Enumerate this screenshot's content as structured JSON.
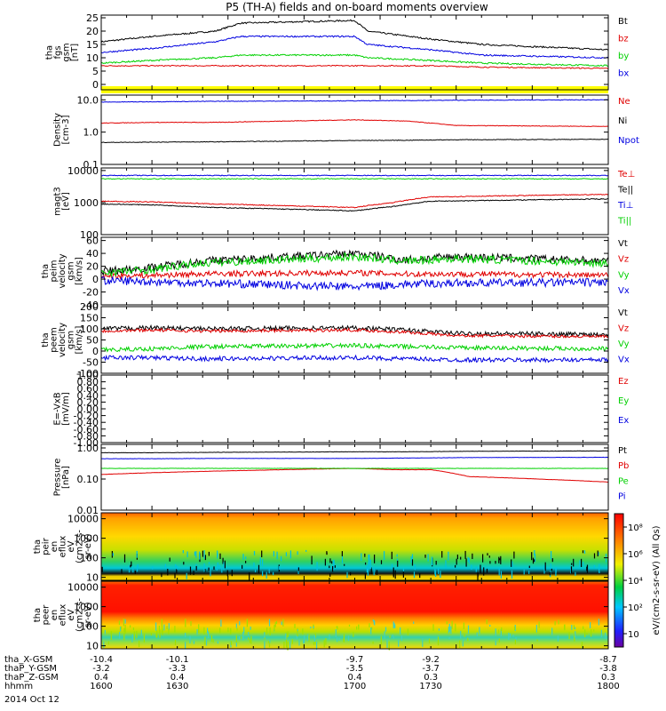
{
  "title": "P5 (TH-A) fields and on-board moments overview",
  "date_label": "2014 Oct 12",
  "ephemeris": {
    "rows": [
      {
        "label": "tha_X-GSM",
        "values": [
          "-10.4",
          "-10.1",
          "-9.7",
          "-9.2",
          "-8.7"
        ]
      },
      {
        "label": "thaP_Y-GSM",
        "values": [
          "-3.2",
          "-3.3",
          "-3.5",
          "-3.7",
          "-3.8"
        ]
      },
      {
        "label": "thaP_Z-GSM",
        "values": [
          "0.4",
          "0.4",
          "0.4",
          "0.3",
          "0.3"
        ]
      },
      {
        "label": "hhmm",
        "values": [
          "1600",
          "1630",
          "1700",
          "1730",
          "1800"
        ]
      }
    ]
  },
  "colorbar_label": "eV/(cm2-s-sr-eV) (All Qs)",
  "colorbar_ticks": [
    "10",
    "10²",
    "10⁴",
    "10⁶",
    "10⁸"
  ],
  "colors": {
    "black": "#000000",
    "red": "#e00000",
    "green": "#00d000",
    "blue": "#0000e0",
    "yellow": "#ffff00"
  },
  "chart_data": [
    {
      "type": "line",
      "ylabel": [
        "tha",
        "fgs",
        "gsm",
        "[nT]"
      ],
      "ylim": [
        -2,
        26
      ],
      "yticks": [
        0,
        5,
        10,
        15,
        20,
        25
      ],
      "ytick_labels": [
        "0",
        "5",
        "10",
        "15",
        "20",
        "25"
      ],
      "log": false,
      "x": [
        1600,
        1620,
        1645,
        1655,
        1700,
        1705,
        1730,
        1750,
        1800
      ],
      "series": [
        {
          "name": "Bt",
          "color": "black",
          "values": [
            16,
            18,
            20,
            23,
            24,
            20,
            17,
            15,
            13
          ]
        },
        {
          "name": "bz",
          "color": "red",
          "values": [
            7,
            7,
            7,
            7,
            7,
            7,
            7,
            6.5,
            6
          ]
        },
        {
          "name": "by",
          "color": "green",
          "values": [
            8,
            9,
            10,
            11,
            11,
            10,
            9,
            8,
            7
          ]
        },
        {
          "name": "bx",
          "color": "blue",
          "values": [
            12,
            13.5,
            16,
            18,
            18,
            15,
            13,
            11,
            10
          ]
        }
      ]
    },
    {
      "type": "line",
      "ylabel": [
        "Density",
        "[cm-3]"
      ],
      "ylim": [
        0.1,
        14
      ],
      "yticks": [
        0.1,
        1,
        10
      ],
      "ytick_labels": [
        "0.1",
        "1.0",
        "10.0"
      ],
      "log": true,
      "x": [
        1600,
        1620,
        1645,
        1700,
        1720,
        1740,
        1800
      ],
      "series": [
        {
          "name": "Ne",
          "color": "red",
          "values": [
            1.9,
            2.0,
            2.0,
            2.4,
            2.2,
            1.6,
            1.5
          ]
        },
        {
          "name": "Ni",
          "color": "black",
          "values": [
            0.48,
            0.49,
            0.5,
            0.55,
            0.56,
            0.58,
            0.6
          ]
        },
        {
          "name": "Npot",
          "color": "blue",
          "values": [
            8.5,
            8.7,
            9,
            9.3,
            9.5,
            9.7,
            10
          ]
        }
      ]
    },
    {
      "type": "line",
      "ylabel": [
        "magt3",
        "[eV]"
      ],
      "ylim": [
        100,
        12000
      ],
      "yticks": [
        100,
        1000,
        10000
      ],
      "ytick_labels": [
        "100",
        "1000",
        "10000"
      ],
      "log": true,
      "x": [
        1600,
        1620,
        1645,
        1700,
        1715,
        1730,
        1800
      ],
      "series": [
        {
          "name": "Te⊥",
          "color": "red",
          "values": [
            1100,
            1050,
            900,
            700,
            1000,
            1500,
            1800
          ]
        },
        {
          "name": "Te||",
          "color": "black",
          "values": [
            900,
            850,
            700,
            550,
            750,
            1100,
            1300
          ]
        },
        {
          "name": "Ti⊥",
          "color": "blue",
          "values": [
            7000,
            7000,
            7000,
            7000,
            7000,
            7000,
            7000
          ]
        },
        {
          "name": "Ti||",
          "color": "green",
          "values": [
            5500,
            5500,
            5500,
            5500,
            5500,
            5500,
            5500
          ]
        }
      ]
    },
    {
      "type": "line",
      "ylabel": [
        "tha",
        "peim",
        "velocity",
        "gsm",
        "[km/s]"
      ],
      "ylim": [
        -40,
        65
      ],
      "yticks": [
        -40,
        -20,
        0,
        20,
        40,
        60
      ],
      "ytick_labels": [
        "-40",
        "-20",
        "0",
        "20",
        "40",
        "60"
      ],
      "log": false,
      "x": [
        1600,
        1620,
        1640,
        1700,
        1720,
        1740,
        1800
      ],
      "series": [
        {
          "name": "Vt",
          "color": "black",
          "values": [
            12,
            18,
            28,
            40,
            30,
            35,
            28
          ]
        },
        {
          "name": "Vz",
          "color": "red",
          "values": [
            5,
            6,
            8,
            10,
            8,
            8,
            6
          ]
        },
        {
          "name": "Vy",
          "color": "green",
          "values": [
            10,
            15,
            25,
            35,
            28,
            32,
            25
          ]
        },
        {
          "name": "Vx",
          "color": "blue",
          "values": [
            -2,
            -4,
            -6,
            -12,
            -8,
            -6,
            -5
          ]
        }
      ]
    },
    {
      "type": "line",
      "ylabel": [
        "tha",
        "peem",
        "velocity",
        "gsm",
        "[km/s]"
      ],
      "ylim": [
        -100,
        200
      ],
      "yticks": [
        -100,
        -50,
        0,
        50,
        100,
        150,
        200
      ],
      "ytick_labels": [
        "-100",
        "-50",
        "0",
        "50",
        "100",
        "150",
        "200"
      ],
      "log": false,
      "x": [
        1600,
        1620,
        1640,
        1700,
        1720,
        1740,
        1800
      ],
      "series": [
        {
          "name": "Vt",
          "color": "black",
          "values": [
            100,
            105,
            100,
            105,
            95,
            80,
            75
          ]
        },
        {
          "name": "Vz",
          "color": "red",
          "values": [
            90,
            95,
            90,
            95,
            85,
            70,
            65
          ]
        },
        {
          "name": "Vy",
          "color": "green",
          "values": [
            5,
            10,
            20,
            25,
            20,
            15,
            10
          ]
        },
        {
          "name": "Vx",
          "color": "blue",
          "values": [
            -30,
            -30,
            -35,
            -30,
            -35,
            -40,
            -40
          ]
        }
      ]
    },
    {
      "type": "line",
      "ylabel": [
        "E=-VxB",
        "[mV/m]"
      ],
      "ylim": [
        -1.0,
        1.0
      ],
      "yticks": [
        -1.0,
        -0.8,
        -0.6,
        -0.4,
        -0.2,
        0.0,
        0.2,
        0.4,
        0.6,
        0.8,
        1.0
      ],
      "ytick_labels": [
        "-1.00",
        "-0.80",
        "-0.60",
        "-0.40",
        "-0.20",
        "0.00",
        "0.20",
        "0.40",
        "0.60",
        "0.80",
        "1.00"
      ],
      "log": false,
      "series": [
        {
          "name": "Ez",
          "color": "red",
          "values": []
        },
        {
          "name": "Ey",
          "color": "green",
          "values": []
        },
        {
          "name": "Ex",
          "color": "blue",
          "values": []
        }
      ]
    },
    {
      "type": "line",
      "ylabel": [
        "Pressure",
        "[nPa]"
      ],
      "ylim": [
        0.01,
        1.3
      ],
      "yticks": [
        0.01,
        0.1,
        1
      ],
      "ytick_labels": [
        "0.01",
        "0.10",
        "1.00"
      ],
      "log": true,
      "x": [
        1600,
        1620,
        1645,
        1700,
        1715,
        1730,
        1745,
        1800
      ],
      "series": [
        {
          "name": "Pt",
          "color": "black",
          "values": [
            0.7,
            0.7,
            0.72,
            0.75,
            0.75,
            0.76,
            0.78,
            0.8
          ]
        },
        {
          "name": "Pb",
          "color": "red",
          "values": [
            0.14,
            0.16,
            0.18,
            0.22,
            0.2,
            0.2,
            0.12,
            0.08
          ]
        },
        {
          "name": "Pe",
          "color": "green",
          "values": [
            0.22,
            0.22,
            0.22,
            0.22,
            0.22,
            0.22,
            0.22,
            0.22
          ]
        },
        {
          "name": "Pi",
          "color": "blue",
          "values": [
            0.45,
            0.45,
            0.46,
            0.46,
            0.47,
            0.48,
            0.49,
            0.5
          ]
        }
      ]
    },
    {
      "type": "heatmap",
      "ylabel": [
        "tha",
        "peir",
        "en",
        "eflux",
        "eV",
        "(cm2-s-",
        "sr-eV)"
      ],
      "ylim": [
        7,
        20000
      ],
      "yticks": [
        10,
        100,
        1000,
        10000
      ],
      "ytick_labels": [
        "10",
        "100",
        "1000",
        "10000"
      ],
      "log": true
    },
    {
      "type": "heatmap",
      "ylabel": [
        "tha",
        "peer",
        "en",
        "eflux",
        "eV",
        "(cm2-s-",
        "sr-eV)"
      ],
      "ylim": [
        7,
        20000
      ],
      "yticks": [
        10,
        100,
        1000,
        10000
      ],
      "ytick_labels": [
        "10",
        "100",
        "1000",
        "10000"
      ],
      "log": true
    }
  ]
}
